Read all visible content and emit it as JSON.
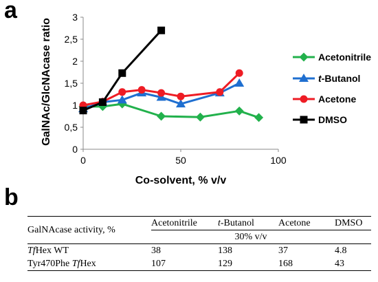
{
  "panel_a_letter": "a",
  "panel_b_letter": "b",
  "chart_data": {
    "type": "line",
    "title": "",
    "xlabel": "Co-solvent, % v/v",
    "ylabel": "GalNAc/GlcNAcase ratio",
    "xlim": [
      0,
      100
    ],
    "ylim": [
      0,
      3
    ],
    "x_ticks": [
      "0",
      "50",
      "100"
    ],
    "y_ticks": [
      "0",
      "0,5",
      "1",
      "1,5",
      "2",
      "2,5",
      "3"
    ],
    "grid": false,
    "legend_position": "right",
    "series": [
      {
        "name": "Acetonitrile",
        "color": "#22b14c",
        "marker": "diamond",
        "x": [
          0,
          10,
          20,
          40,
          60,
          80,
          90
        ],
        "y": [
          0.97,
          0.97,
          1.03,
          0.75,
          0.73,
          0.87,
          0.72
        ]
      },
      {
        "name": "t-Butanol",
        "name_italic": "t",
        "name_rest": "-Butanol",
        "color": "#1f6fd0",
        "marker": "triangle",
        "x": [
          0,
          10,
          20,
          30,
          40,
          50,
          70,
          80
        ],
        "y": [
          0.92,
          1.07,
          1.12,
          1.28,
          1.18,
          1.03,
          1.28,
          1.5
        ]
      },
      {
        "name": "Acetone",
        "color": "#ee1c24",
        "marker": "circle",
        "x": [
          0,
          10,
          20,
          30,
          40,
          50,
          70,
          80
        ],
        "y": [
          1.0,
          1.08,
          1.3,
          1.35,
          1.28,
          1.2,
          1.3,
          1.73
        ]
      },
      {
        "name": "DMSO",
        "color": "#000000",
        "marker": "square",
        "x": [
          0,
          10,
          20,
          40
        ],
        "y": [
          0.88,
          1.07,
          1.73,
          2.7
        ]
      }
    ]
  },
  "table": {
    "row_header": "GalNAcase activity, %",
    "columns": [
      {
        "label": "Acetonitrile"
      },
      {
        "label_italic": "t",
        "label_rest": "-Butanol"
      },
      {
        "label": "Acetone"
      },
      {
        "label": "DMSO"
      }
    ],
    "subheader": "30% v/v",
    "rows": [
      {
        "label_italic": "Tf",
        "label_rest": "Hex WT",
        "values": [
          "38",
          "138",
          "37",
          "4.8"
        ]
      },
      {
        "label_pre": "Tyr470Phe ",
        "label_italic": "Tf",
        "label_rest": "Hex",
        "values": [
          "107",
          "129",
          "168",
          "43"
        ]
      }
    ]
  }
}
